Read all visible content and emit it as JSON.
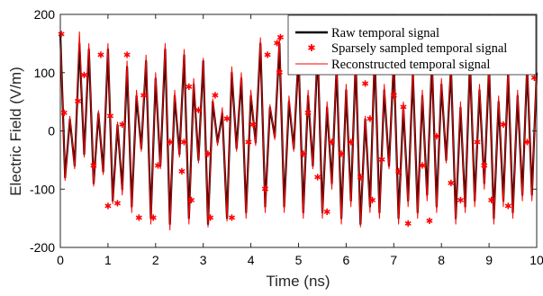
{
  "chart_data": {
    "type": "line",
    "title": "",
    "xlabel": "Time (ns)",
    "ylabel": "Electric Field (V/m)",
    "xlim": [
      0,
      10
    ],
    "ylim": [
      -200,
      200
    ],
    "xticks": [
      "0",
      "1",
      "2",
      "3",
      "4",
      "5",
      "6",
      "7",
      "8",
      "9",
      "10"
    ],
    "yticks": [
      "200",
      "100",
      "0",
      "-100",
      "-200"
    ],
    "grid": false,
    "legend_position": "top-right",
    "series": [
      {
        "name": "Raw temporal signal",
        "style": "line",
        "color": "#000000",
        "x": [
          0,
          0.1,
          0.2,
          0.3,
          0.4,
          0.5,
          0.6,
          0.7,
          0.8,
          0.9,
          1.0,
          1.1,
          1.2,
          1.3,
          1.4,
          1.5,
          1.6,
          1.7,
          1.8,
          1.9,
          2.0,
          2.1,
          2.2,
          2.3,
          2.4,
          2.5,
          2.6,
          2.7,
          2.8,
          2.9,
          3.0,
          3.1,
          3.2,
          3.3,
          3.4,
          3.5,
          3.6,
          3.7,
          3.8,
          3.9,
          4.0,
          4.1,
          4.2,
          4.3,
          4.4,
          4.5,
          4.6,
          4.7,
          4.8,
          4.9,
          5.0,
          5.1,
          5.2,
          5.3,
          5.4,
          5.5,
          5.6,
          5.7,
          5.8,
          5.9,
          6.0,
          6.1,
          6.2,
          6.3,
          6.4,
          6.5,
          6.6,
          6.7,
          6.8,
          6.9,
          7.0,
          7.1,
          7.2,
          7.3,
          7.4,
          7.5,
          7.6,
          7.7,
          7.8,
          7.9,
          8.0,
          8.1,
          8.2,
          8.3,
          8.4,
          8.5,
          8.6,
          8.7,
          8.8,
          8.9,
          9.0,
          9.1,
          9.2,
          9.3,
          9.4,
          9.5,
          9.6,
          9.7,
          9.8,
          9.9,
          10.0
        ],
        "y": [
          165,
          -80,
          20,
          -60,
          150,
          -40,
          140,
          -90,
          30,
          -70,
          140,
          -120,
          10,
          -100,
          110,
          -130,
          60,
          -30,
          120,
          -150,
          90,
          -60,
          140,
          -160,
          60,
          -40,
          130,
          -150,
          80,
          -50,
          120,
          -160,
          50,
          -20,
          30,
          -150,
          100,
          -30,
          90,
          -140,
          60,
          -20,
          150,
          -130,
          40,
          -10,
          150,
          -130,
          50,
          -30,
          130,
          -140,
          60,
          -60,
          140,
          -140,
          40,
          -90,
          110,
          -150,
          70,
          -120,
          120,
          -160,
          20,
          -130,
          130,
          -140,
          70,
          -60,
          120,
          -150,
          40,
          -120,
          100,
          -140,
          60,
          -110,
          120,
          -130,
          80,
          -50,
          110,
          -150,
          40,
          -130,
          120,
          -120,
          70,
          -90,
          110,
          -150,
          50,
          -120,
          100,
          -140,
          60,
          -110,
          110,
          -110,
          100
        ]
      },
      {
        "name": "Sparsely sampled temporal signal",
        "style": "markers",
        "color": "#ff0000",
        "x": [
          0.02,
          0.08,
          0.37,
          0.5,
          0.7,
          0.85,
          1.0,
          1.05,
          1.2,
          1.3,
          1.4,
          1.65,
          1.75,
          1.95,
          2.05,
          2.3,
          2.55,
          2.6,
          2.7,
          2.75,
          2.9,
          3.1,
          3.15,
          3.25,
          3.5,
          3.6,
          3.95,
          4.05,
          4.3,
          4.35,
          4.55,
          4.6,
          4.62,
          5.1,
          5.2,
          5.4,
          5.6,
          5.7,
          5.9,
          6.1,
          6.3,
          6.4,
          6.5,
          6.55,
          6.75,
          7.0,
          7.1,
          7.2,
          7.3,
          7.6,
          7.75,
          7.9,
          8.0,
          8.2,
          8.4,
          8.6,
          8.75,
          8.9,
          9.05,
          9.3,
          9.4,
          9.6,
          9.8,
          9.95
        ],
        "y": [
          165,
          30,
          50,
          95,
          -60,
          130,
          -130,
          25,
          -125,
          10,
          130,
          -150,
          60,
          -150,
          -60,
          -20,
          -70,
          -20,
          75,
          -120,
          35,
          -40,
          -150,
          60,
          20,
          -150,
          -20,
          10,
          -100,
          130,
          150,
          100,
          160,
          -40,
          30,
          -80,
          -140,
          -20,
          -40,
          -20,
          -80,
          80,
          20,
          -120,
          -50,
          60,
          -70,
          40,
          -160,
          -60,
          -155,
          -10,
          130,
          -90,
          -120,
          110,
          -20,
          -60,
          -120,
          10,
          -130,
          110,
          -20,
          90
        ]
      },
      {
        "name": "Reconstructed temporal signal",
        "style": "line",
        "color": "#ff0000",
        "x": [
          0,
          0.1,
          0.2,
          0.3,
          0.4,
          0.5,
          0.6,
          0.7,
          0.8,
          0.9,
          1.0,
          1.1,
          1.2,
          1.3,
          1.4,
          1.5,
          1.6,
          1.7,
          1.8,
          1.9,
          2.0,
          2.1,
          2.2,
          2.3,
          2.4,
          2.5,
          2.6,
          2.7,
          2.8,
          2.9,
          3.0,
          3.1,
          3.2,
          3.3,
          3.4,
          3.5,
          3.6,
          3.7,
          3.8,
          3.9,
          4.0,
          4.1,
          4.2,
          4.3,
          4.4,
          4.5,
          4.6,
          4.7,
          4.8,
          4.9,
          5.0,
          5.1,
          5.2,
          5.3,
          5.4,
          5.5,
          5.6,
          5.7,
          5.8,
          5.9,
          6.0,
          6.1,
          6.2,
          6.3,
          6.4,
          6.5,
          6.6,
          6.7,
          6.8,
          6.9,
          7.0,
          7.1,
          7.2,
          7.3,
          7.4,
          7.5,
          7.6,
          7.7,
          7.8,
          7.9,
          8.0,
          8.1,
          8.2,
          8.3,
          8.4,
          8.5,
          8.6,
          8.7,
          8.8,
          8.9,
          9.0,
          9.1,
          9.2,
          9.3,
          9.4,
          9.5,
          9.6,
          9.7,
          9.8,
          9.9,
          10.0
        ],
        "y": [
          165,
          -85,
          25,
          -65,
          170,
          -45,
          150,
          -95,
          35,
          -75,
          150,
          -125,
          15,
          -110,
          120,
          -140,
          70,
          -35,
          130,
          -160,
          100,
          -65,
          150,
          -170,
          70,
          -45,
          140,
          -160,
          90,
          -55,
          125,
          -165,
          55,
          -25,
          40,
          -155,
          110,
          -35,
          100,
          -150,
          70,
          -25,
          160,
          -140,
          45,
          -15,
          160,
          -140,
          60,
          -35,
          140,
          -150,
          70,
          -65,
          150,
          -150,
          50,
          -100,
          120,
          -160,
          80,
          -130,
          130,
          -165,
          25,
          -140,
          140,
          -150,
          80,
          -65,
          130,
          -160,
          50,
          -130,
          110,
          -150,
          70,
          -120,
          130,
          -140,
          90,
          -55,
          120,
          -160,
          50,
          -140,
          130,
          -130,
          80,
          -100,
          120,
          -160,
          60,
          -130,
          110,
          -150,
          70,
          -120,
          120,
          -120,
          110
        ]
      }
    ]
  }
}
